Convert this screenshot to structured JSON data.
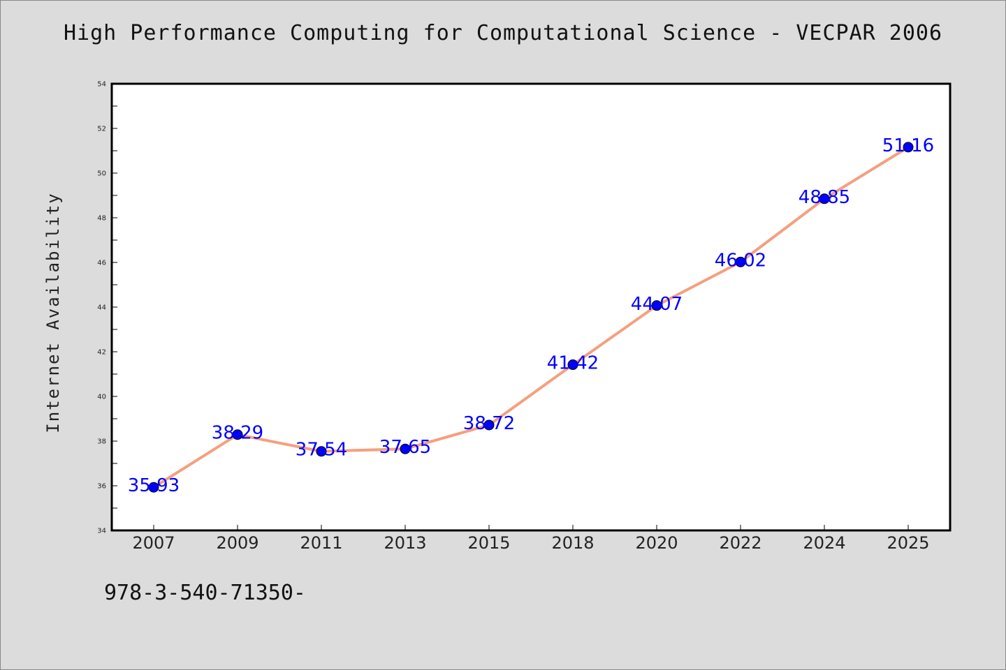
{
  "chart_data": {
    "type": "line",
    "title": "High Performance Computing for Computational Science - VECPAR 2006",
    "xlabel": "",
    "ylabel": "Internet Availability",
    "categories": [
      "2007",
      "2009",
      "2011",
      "2013",
      "2015",
      "2018",
      "2020",
      "2022",
      "2024",
      "2025"
    ],
    "series": [
      {
        "values": [
          35.93,
          38.29,
          37.54,
          37.65,
          38.72,
          41.42,
          44.07,
          46.02,
          48.85,
          51.16
        ],
        "labels": [
          "35.93",
          "38.29",
          "37.54",
          "37.65",
          "38.72",
          "41.42",
          "44.07",
          "46.02",
          "48.85",
          "51.16"
        ]
      }
    ],
    "ylim": [
      34,
      54
    ],
    "y_ticks": [
      "34",
      "36",
      "38",
      "40",
      "42",
      "44",
      "46",
      "48",
      "50",
      "52",
      "54"
    ],
    "grid": false,
    "legend": "none",
    "colors": {
      "line": "#f4a07e",
      "marker": "#0000ff",
      "data_label": "#0000ff",
      "plot_background": "#ffffff",
      "page_background": "#dcdcdc"
    }
  },
  "footer_text": "978-3-540-71350-"
}
